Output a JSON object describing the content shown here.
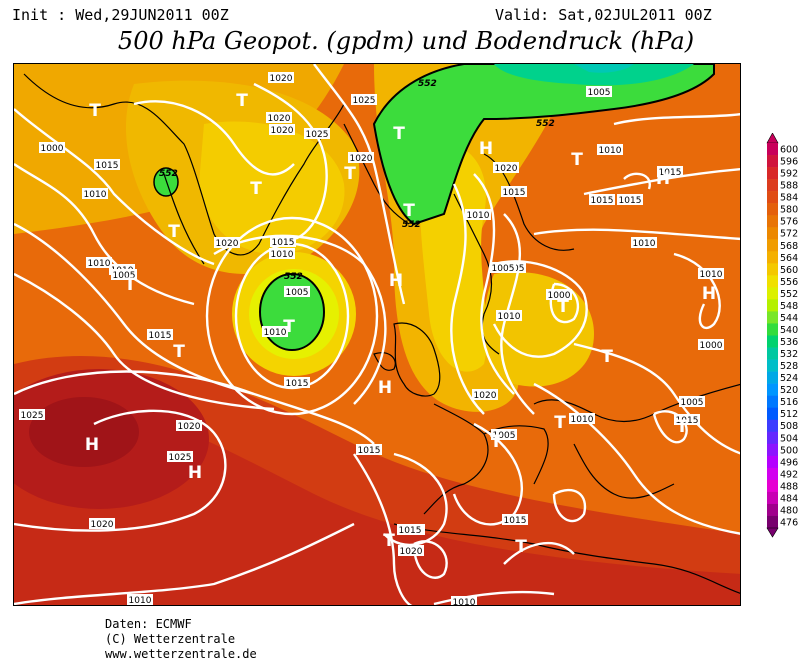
{
  "header": {
    "init": "Init : Wed,29JUN2011 00Z",
    "valid": "Valid: Sat,02JUL2011 00Z",
    "title": "500 hPa Geopot. (gpdm) und Bodendruck (hPa)"
  },
  "credits": {
    "line1": "Daten: ECMWF",
    "line2": "(C) Wetterzentrale",
    "line3": "www.wetterzentrale.de"
  },
  "legend": {
    "values": [
      "600",
      "596",
      "592",
      "588",
      "584",
      "580",
      "576",
      "572",
      "568",
      "564",
      "560",
      "556",
      "552",
      "548",
      "544",
      "540",
      "536",
      "532",
      "528",
      "524",
      "520",
      "516",
      "512",
      "508",
      "504",
      "500",
      "496",
      "492",
      "488",
      "484",
      "480",
      "476"
    ],
    "colors": [
      "#c8005a",
      "#d0143c",
      "#d82828",
      "#dc3c1e",
      "#e04c14",
      "#e4600c",
      "#e87406",
      "#ec8800",
      "#f09c00",
      "#f4b000",
      "#f4c800",
      "#f0e000",
      "#dcf000",
      "#b4f000",
      "#78e628",
      "#32dc3c",
      "#00d26e",
      "#00c8a0",
      "#00bec8",
      "#00a8e6",
      "#0096ff",
      "#0078ff",
      "#005aff",
      "#3c3cff",
      "#6428ff",
      "#8c14ff",
      "#b400ff",
      "#d200f0",
      "#e600d2",
      "#c800b4",
      "#a0008c",
      "#78006e"
    ]
  },
  "map": {
    "low_label": "T",
    "high_label": "H",
    "isobar_labels": [
      "1020",
      "1025",
      "1005",
      "1000",
      "1010",
      "1015",
      "1020",
      "1025",
      "1020",
      "1020",
      "1015",
      "1010",
      "1005",
      "1010",
      "1015",
      "1020",
      "1025",
      "1020",
      "1015",
      "1010",
      "1005",
      "1000",
      "1010",
      "1010",
      "1015",
      "1015",
      "1005",
      "1015",
      "1010",
      "1020",
      "1015",
      "1010",
      "1025",
      "1020",
      "1015",
      "1020",
      "1015",
      "1010",
      "1005",
      "1000",
      "1010",
      "1005",
      "1015",
      "1010",
      "1005",
      "1010",
      "1010",
      "1015",
      "1020",
      "1015"
    ],
    "geopot_labels": [
      "552",
      "552",
      "552",
      "552",
      "552"
    ]
  }
}
